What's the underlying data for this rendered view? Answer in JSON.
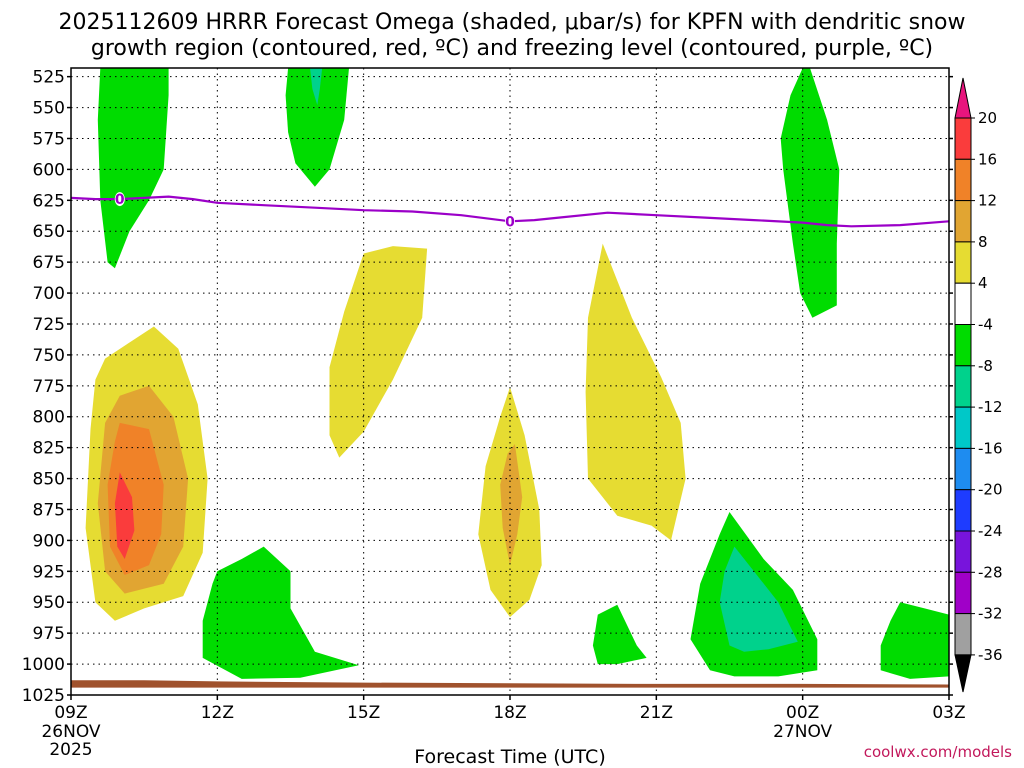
{
  "chart_data": {
    "type": "heatmap",
    "title_line1": "2025112609 HRRR Forecast Omega (shaded, μbar/s) for KPFN with dendritic snow",
    "title_line2": "growth region (contoured, red, ºC) and freezing level (contoured, purple, ºC)",
    "xlabel": "Forecast Time (UTC)",
    "credit": "coolwx.com/models",
    "x_range_hours": [
      9,
      27
    ],
    "y_range_hpa": [
      1025,
      518
    ],
    "x_ticks": [
      {
        "hour": 9,
        "label": "09Z",
        "sub1": "26NOV",
        "sub2": "2025"
      },
      {
        "hour": 12,
        "label": "12Z",
        "sub1": "",
        "sub2": ""
      },
      {
        "hour": 15,
        "label": "15Z",
        "sub1": "",
        "sub2": ""
      },
      {
        "hour": 18,
        "label": "18Z",
        "sub1": "",
        "sub2": ""
      },
      {
        "hour": 21,
        "label": "21Z",
        "sub1": "",
        "sub2": ""
      },
      {
        "hour": 24,
        "label": "00Z",
        "sub1": "27NOV",
        "sub2": ""
      },
      {
        "hour": 27,
        "label": "03Z",
        "sub1": "",
        "sub2": ""
      }
    ],
    "y_ticks": [
      525,
      550,
      575,
      600,
      625,
      650,
      675,
      700,
      725,
      750,
      775,
      800,
      825,
      850,
      875,
      900,
      925,
      950,
      975,
      1000,
      1025
    ],
    "colorbar": {
      "labels": [
        "20",
        "16",
        "12",
        "8",
        "4",
        "-4",
        "-8",
        "-12",
        "-16",
        "-20",
        "-24",
        "-28",
        "-32",
        "-36"
      ],
      "top_color": "#e8157d",
      "bins": [
        {
          "range": "16 to 20",
          "color": "#fa3c3c"
        },
        {
          "range": "12 to 16",
          "color": "#f08228"
        },
        {
          "range": "8 to 12",
          "color": "#e1a532"
        },
        {
          "range": "4 to 8",
          "color": "#e6dc32"
        },
        {
          "range": "-4 to 4",
          "color": "#ffffff"
        },
        {
          "range": "-8 to -4",
          "color": "#00dc00"
        },
        {
          "range": "-12 to -8",
          "color": "#00d28c"
        },
        {
          "range": "-16 to -12",
          "color": "#00c8c8"
        },
        {
          "range": "-20 to -16",
          "color": "#1e8cf0"
        },
        {
          "range": "-24 to -20",
          "color": "#1e3cff"
        },
        {
          "range": "-28 to -24",
          "color": "#7814dc"
        },
        {
          "range": "-32 to -28",
          "color": "#a000c8"
        },
        {
          "range": "-36 to -32",
          "color": "#a0a0a0"
        }
      ],
      "bottom_color": "#000000"
    },
    "freezing_level": {
      "label": "0",
      "color": "#9b00c8",
      "points": [
        [
          9.0,
          623
        ],
        [
          9.5,
          624
        ],
        [
          10.0,
          624
        ],
        [
          10.5,
          623
        ],
        [
          11.0,
          622
        ],
        [
          11.5,
          624
        ],
        [
          12.0,
          627
        ],
        [
          13.0,
          629
        ],
        [
          14.0,
          631
        ],
        [
          15.0,
          633
        ],
        [
          16.0,
          634
        ],
        [
          17.0,
          637
        ],
        [
          18.0,
          642
        ],
        [
          18.5,
          641
        ],
        [
          19.0,
          639
        ],
        [
          20.0,
          635
        ],
        [
          21.0,
          637
        ],
        [
          22.0,
          639
        ],
        [
          23.0,
          641
        ],
        [
          24.0,
          643
        ],
        [
          24.5,
          645
        ],
        [
          25.0,
          646
        ],
        [
          26.0,
          645
        ],
        [
          27.0,
          642
        ]
      ],
      "label_points": [
        [
          10.0,
          624
        ],
        [
          18.0,
          642
        ]
      ]
    },
    "surface_color": "#a0522d",
    "omega_regions": [
      {
        "value_range": "-8 to -4",
        "color": "#00dc00",
        "points": [
          [
            9.6,
            518
          ],
          [
            11.0,
            518
          ],
          [
            11.0,
            540
          ],
          [
            10.9,
            600
          ],
          [
            10.6,
            625
          ],
          [
            10.2,
            650
          ],
          [
            9.9,
            680
          ],
          [
            9.75,
            675
          ],
          [
            9.6,
            625
          ],
          [
            9.55,
            560
          ]
        ]
      },
      {
        "value_range": "-8 to -4",
        "color": "#00dc00",
        "points": [
          [
            13.45,
            518
          ],
          [
            14.7,
            518
          ],
          [
            14.6,
            560
          ],
          [
            14.3,
            600
          ],
          [
            14.0,
            614
          ],
          [
            13.6,
            595
          ],
          [
            13.45,
            570
          ],
          [
            13.4,
            540
          ]
        ]
      },
      {
        "value_range": "-12 to -8",
        "color": "#00d28c",
        "points": [
          [
            13.9,
            518
          ],
          [
            14.15,
            518
          ],
          [
            14.1,
            535
          ],
          [
            14.05,
            548
          ],
          [
            13.95,
            535
          ]
        ]
      },
      {
        "value_range": "-8 to -4",
        "color": "#00dc00",
        "points": [
          [
            24.0,
            518
          ],
          [
            24.15,
            518
          ],
          [
            24.5,
            560
          ],
          [
            24.75,
            600
          ],
          [
            24.7,
            660
          ],
          [
            24.7,
            710
          ],
          [
            24.2,
            720
          ],
          [
            23.95,
            700
          ],
          [
            23.8,
            660
          ],
          [
            23.6,
            600
          ],
          [
            23.55,
            575
          ],
          [
            23.75,
            540
          ]
        ]
      },
      {
        "value_range": "4 to 8",
        "color": "#e6dc32",
        "points": [
          [
            9.7,
            753
          ],
          [
            10.2,
            740
          ],
          [
            10.7,
            727
          ],
          [
            11.2,
            745
          ],
          [
            11.6,
            790
          ],
          [
            11.8,
            850
          ],
          [
            11.7,
            910
          ],
          [
            11.3,
            945
          ],
          [
            10.5,
            955
          ],
          [
            9.9,
            965
          ],
          [
            9.5,
            950
          ],
          [
            9.3,
            890
          ],
          [
            9.4,
            810
          ],
          [
            9.5,
            770
          ]
        ]
      },
      {
        "value_range": "8 to 12",
        "color": "#e1a532",
        "points": [
          [
            10.0,
            783
          ],
          [
            10.6,
            775
          ],
          [
            11.1,
            800
          ],
          [
            11.4,
            850
          ],
          [
            11.3,
            905
          ],
          [
            10.9,
            935
          ],
          [
            10.1,
            943
          ],
          [
            9.7,
            925
          ],
          [
            9.55,
            870
          ],
          [
            9.7,
            805
          ]
        ]
      },
      {
        "value_range": "12 to 16",
        "color": "#f08228",
        "points": [
          [
            10.0,
            805
          ],
          [
            10.6,
            810
          ],
          [
            10.9,
            855
          ],
          [
            10.85,
            895
          ],
          [
            10.6,
            920
          ],
          [
            10.1,
            928
          ],
          [
            9.8,
            905
          ],
          [
            9.75,
            855
          ],
          [
            9.9,
            820
          ]
        ]
      },
      {
        "value_range": "16 to 20",
        "color": "#fa3c3c",
        "points": [
          [
            10.0,
            845
          ],
          [
            10.25,
            865
          ],
          [
            10.3,
            892
          ],
          [
            10.1,
            915
          ],
          [
            9.95,
            905
          ],
          [
            9.9,
            870
          ]
        ]
      },
      {
        "value_range": "4 to 8",
        "color": "#e6dc32",
        "points": [
          [
            15.0,
            668
          ],
          [
            15.6,
            662
          ],
          [
            16.3,
            664
          ],
          [
            16.2,
            720
          ],
          [
            15.6,
            770
          ],
          [
            15.0,
            812
          ],
          [
            14.5,
            833
          ],
          [
            14.3,
            815
          ],
          [
            14.3,
            760
          ],
          [
            14.6,
            715
          ]
        ]
      },
      {
        "value_range": "4 to 8",
        "color": "#e6dc32",
        "points": [
          [
            18.0,
            776
          ],
          [
            18.3,
            815
          ],
          [
            18.6,
            875
          ],
          [
            18.65,
            920
          ],
          [
            18.4,
            948
          ],
          [
            18.0,
            962
          ],
          [
            17.6,
            940
          ],
          [
            17.35,
            895
          ],
          [
            17.5,
            840
          ],
          [
            17.8,
            800
          ]
        ]
      },
      {
        "value_range": "8 to 12",
        "color": "#e1a532",
        "points": [
          [
            18.1,
            822
          ],
          [
            18.25,
            865
          ],
          [
            18.15,
            895
          ],
          [
            18.0,
            920
          ],
          [
            17.85,
            890
          ],
          [
            17.8,
            855
          ],
          [
            17.95,
            830
          ]
        ]
      },
      {
        "value_range": "4 to 8",
        "color": "#e6dc32",
        "points": [
          [
            19.9,
            660
          ],
          [
            20.5,
            720
          ],
          [
            21.1,
            768
          ],
          [
            21.5,
            805
          ],
          [
            21.6,
            850
          ],
          [
            21.3,
            900
          ],
          [
            20.9,
            888
          ],
          [
            20.2,
            880
          ],
          [
            19.6,
            850
          ],
          [
            19.55,
            780
          ],
          [
            19.6,
            720
          ]
        ]
      },
      {
        "value_range": "-8 to -4",
        "color": "#00dc00",
        "points": [
          [
            12.0,
            925
          ],
          [
            12.5,
            915
          ],
          [
            12.95,
            905
          ],
          [
            13.5,
            925
          ],
          [
            13.5,
            955
          ],
          [
            14.0,
            990
          ],
          [
            14.9,
            1001
          ],
          [
            13.7,
            1011
          ],
          [
            12.5,
            1012
          ],
          [
            11.7,
            995
          ],
          [
            11.7,
            965
          ],
          [
            11.9,
            935
          ]
        ]
      },
      {
        "value_range": "-8 to -4",
        "color": "#00dc00",
        "points": [
          [
            19.8,
            960
          ],
          [
            20.2,
            952
          ],
          [
            20.6,
            985
          ],
          [
            20.8,
            995
          ],
          [
            20.2,
            1000
          ],
          [
            19.8,
            1000
          ],
          [
            19.7,
            985
          ]
        ]
      },
      {
        "value_range": "-8 to -4",
        "color": "#00dc00",
        "points": [
          [
            22.5,
            877
          ],
          [
            23.2,
            915
          ],
          [
            23.8,
            940
          ],
          [
            24.3,
            980
          ],
          [
            24.3,
            1005
          ],
          [
            23.5,
            1010
          ],
          [
            22.6,
            1010
          ],
          [
            22.1,
            1005
          ],
          [
            21.7,
            980
          ],
          [
            21.9,
            935
          ],
          [
            22.3,
            895
          ]
        ]
      },
      {
        "value_range": "-12 to -8",
        "color": "#00d28c",
        "points": [
          [
            22.6,
            905
          ],
          [
            23.0,
            925
          ],
          [
            23.5,
            950
          ],
          [
            23.9,
            982
          ],
          [
            23.3,
            988
          ],
          [
            22.8,
            990
          ],
          [
            22.5,
            985
          ],
          [
            22.3,
            950
          ],
          [
            22.4,
            925
          ]
        ]
      },
      {
        "value_range": "-8 to -4",
        "color": "#00dc00",
        "points": [
          [
            26.0,
            950
          ],
          [
            26.5,
            955
          ],
          [
            27.0,
            960
          ],
          [
            27.0,
            1010
          ],
          [
            26.2,
            1012
          ],
          [
            25.6,
            1005
          ],
          [
            25.6,
            985
          ],
          [
            25.8,
            965
          ]
        ]
      }
    ]
  }
}
